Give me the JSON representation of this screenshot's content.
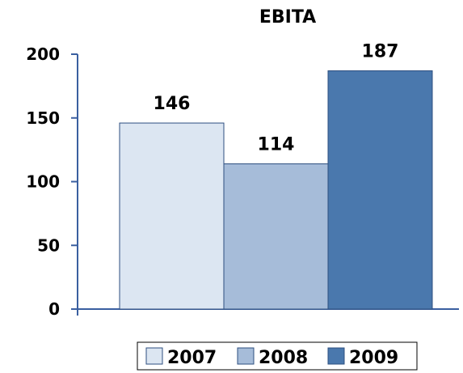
{
  "chart_data": {
    "type": "bar",
    "title": "EBITA",
    "xlabel": "",
    "ylabel": "",
    "ylim": [
      0,
      200
    ],
    "yticks": [
      0,
      50,
      100,
      150,
      200
    ],
    "grid": false,
    "legend_position": "bottom",
    "series": [
      {
        "name": "2007",
        "values": [
          146
        ],
        "color": "#dce6f2"
      },
      {
        "name": "2008",
        "values": [
          114
        ],
        "color": "#a6bcd9"
      },
      {
        "name": "2009",
        "values": [
          187
        ],
        "color": "#4a78ad"
      }
    ],
    "data_labels": [
      "146",
      "114",
      "187"
    ]
  },
  "colors": {
    "axis": "#3a5fa0",
    "bar_border": "#2e4f80"
  }
}
